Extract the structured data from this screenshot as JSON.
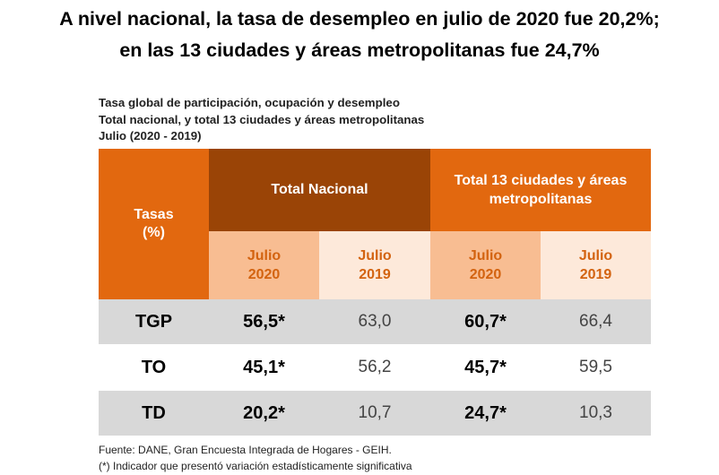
{
  "headline": {
    "line1": "A nivel nacional, la tasa de desempleo en julio de 2020 fue 20,2%;",
    "line2": "en las 13 ciudades y áreas metropolitanas fue 24,7%"
  },
  "table_caption": {
    "line1": "Tasa global de participación, ocupación y desempleo",
    "line2": "Total nacional, y total 13 ciudades y áreas metropolitanas",
    "line3": "Julio (2020 - 2019)"
  },
  "table": {
    "corner": {
      "line1": "Tasas",
      "line2": "(%)"
    },
    "group_headers": {
      "nacional": "Total Nacional",
      "ciudades": "Total 13 ciudades y áreas metropolitanas"
    },
    "sub_headers": {
      "nac_2020": {
        "month": "Julio",
        "year": "2020"
      },
      "nac_2019": {
        "month": "Julio",
        "year": "2019"
      },
      "ciu_2020": {
        "month": "Julio",
        "year": "2020"
      },
      "ciu_2019": {
        "month": "Julio",
        "year": "2019"
      }
    },
    "rows": [
      {
        "label": "TGP",
        "nac_2020": "56,5*",
        "nac_2019": "63,0",
        "ciu_2020": "60,7*",
        "ciu_2019": "66,4"
      },
      {
        "label": "TO",
        "nac_2020": "45,1*",
        "nac_2019": "56,2",
        "ciu_2020": "45,7*",
        "ciu_2019": "59,5"
      },
      {
        "label": "TD",
        "nac_2020": "20,2*",
        "nac_2019": "10,7",
        "ciu_2020": "24,7*",
        "ciu_2019": "10,3"
      }
    ]
  },
  "footnotes": {
    "source": "Fuente: DANE, Gran Encuesta Integrada de Hogares - GEIH.",
    "note": "(*) Indicador que presentó variación estadísticamente significativa"
  },
  "colors": {
    "orange": "#e2680f",
    "brown": "#9a4406",
    "peach": "#f8bd92",
    "light_peach": "#fde9da",
    "row_gray": "#d8d8d8"
  }
}
